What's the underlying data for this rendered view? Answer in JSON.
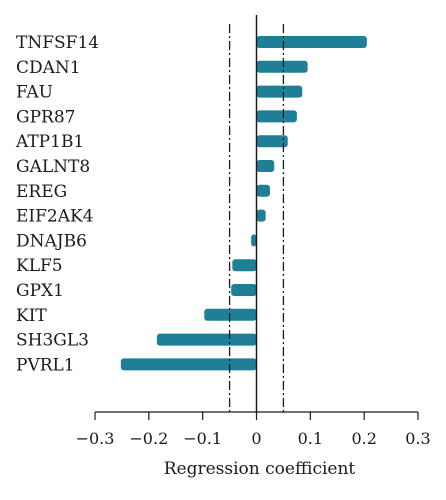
{
  "chart_data": {
    "type": "bar",
    "orientation": "horizontal",
    "categories": [
      "TNFSF14",
      "CDAN1",
      "FAU",
      "GPR87",
      "ATP1B1",
      "GALNT8",
      "EREG",
      "EIF2AK4",
      "DNAJB6",
      "KLF5",
      "GPX1",
      "KIT",
      "SH3GL3",
      "PVRL1"
    ],
    "values": [
      0.205,
      0.095,
      0.085,
      0.075,
      0.058,
      0.033,
      0.025,
      0.017,
      -0.01,
      -0.045,
      -0.047,
      -0.097,
      -0.185,
      -0.252
    ],
    "title": "",
    "xlabel": "Regression coefficient",
    "ylabel": "",
    "xlim": [
      -0.3,
      0.3
    ],
    "xticks": [
      -0.3,
      -0.2,
      -0.1,
      0,
      0.1,
      0.2,
      0.3
    ],
    "xtick_labels": [
      "−0.3",
      "−0.2",
      "−0.1",
      "0",
      "0.1",
      "0.2",
      "0.3"
    ],
    "reference_lines": [
      -0.05,
      0.05
    ],
    "grid": false,
    "legend": "none",
    "bar_color": "#1f7f96"
  }
}
